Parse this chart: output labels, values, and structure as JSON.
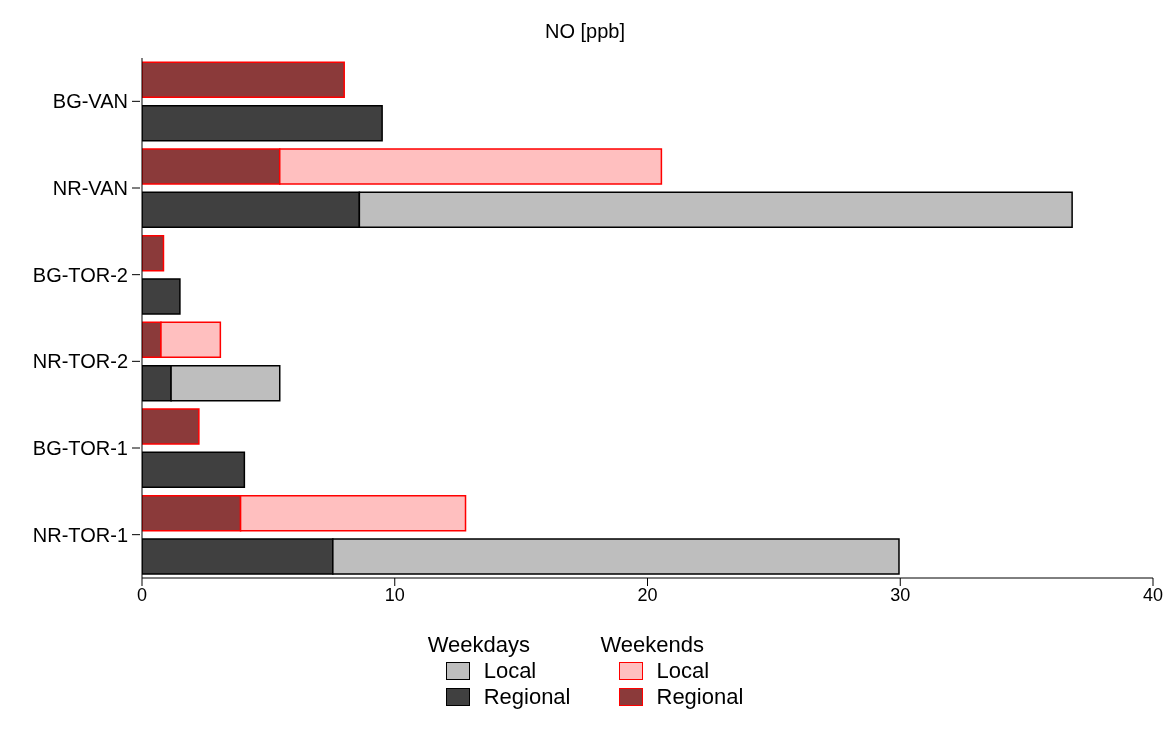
{
  "chart_data": {
    "type": "bar",
    "orientation": "horizontal",
    "stacked": true,
    "title": "NO [ppb]",
    "categories": [
      "BG-VAN",
      null,
      "NR-VAN",
      null,
      "BG-TOR-2",
      null,
      "NR-TOR-2",
      null,
      "BG-TOR-1",
      null,
      "NR-TOR-1",
      null
    ],
    "series": [
      {
        "name": "Regional",
        "color": "#404040",
        "values": [
          null,
          9.5,
          null,
          8.6,
          null,
          1.5,
          null,
          1.15,
          null,
          4.05,
          null,
          7.55
        ]
      },
      {
        "name": "Local",
        "color": "#bebebe",
        "values": [
          null,
          null,
          null,
          28.2,
          null,
          null,
          null,
          4.3,
          null,
          null,
          null,
          22.4
        ]
      },
      {
        "name": "Regional",
        "color": "#8b3a3a",
        "values": [
          8.0,
          null,
          5.45,
          null,
          0.85,
          null,
          0.75,
          null,
          2.25,
          null,
          3.9,
          null
        ]
      },
      {
        "name": "Local",
        "color": "#ffbfbf",
        "values": [
          null,
          null,
          15.1,
          null,
          null,
          null,
          2.35,
          null,
          null,
          null,
          8.9,
          null
        ]
      }
    ],
    "annotations": [
      "Weekdays",
      "Weekends"
    ],
    "xlim": [
      0,
      40
    ],
    "xticks": [
      0,
      10,
      20,
      30,
      40
    ],
    "grid": false,
    "legend": "bottom"
  }
}
